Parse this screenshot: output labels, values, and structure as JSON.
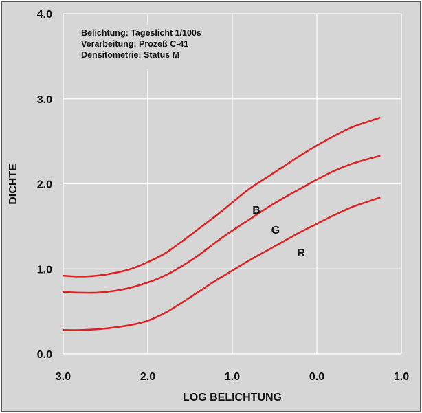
{
  "chart_data": {
    "type": "line",
    "xlabel": "LOG BELICHTUNG",
    "ylabel": "DICHTE",
    "xlim": [
      3.0,
      -1.0
    ],
    "ylim": [
      0.0,
      4.0
    ],
    "x_ticks": [
      "3.0",
      "2.0",
      "1.0",
      "0.0",
      "1.0"
    ],
    "y_ticks": [
      "4.0",
      "3.0",
      "2.0",
      "1.0",
      "0.0"
    ],
    "grid": true,
    "annotations": [
      "Belichtung: Tageslicht 1/100s",
      "Verarbeitung: Prozeß C-41",
      "Densitometrie: Status M"
    ],
    "series": [
      {
        "name": "B",
        "color": "#e02020",
        "x": [
          3.0,
          2.8,
          2.6,
          2.4,
          2.2,
          2.0,
          1.8,
          1.6,
          1.4,
          1.2,
          1.0,
          0.8,
          0.6,
          0.4,
          0.2,
          0.0,
          -0.2,
          -0.4,
          -0.6,
          -0.75
        ],
        "y": [
          0.92,
          0.91,
          0.92,
          0.95,
          1.0,
          1.08,
          1.18,
          1.32,
          1.47,
          1.62,
          1.78,
          1.94,
          2.07,
          2.2,
          2.33,
          2.45,
          2.56,
          2.66,
          2.73,
          2.78
        ]
      },
      {
        "name": "G",
        "color": "#e02020",
        "x": [
          3.0,
          2.8,
          2.6,
          2.4,
          2.2,
          2.0,
          1.8,
          1.6,
          1.4,
          1.2,
          1.0,
          0.8,
          0.6,
          0.4,
          0.2,
          0.0,
          -0.2,
          -0.4,
          -0.6,
          -0.75
        ],
        "y": [
          0.73,
          0.72,
          0.72,
          0.74,
          0.78,
          0.84,
          0.92,
          1.03,
          1.16,
          1.31,
          1.45,
          1.58,
          1.71,
          1.83,
          1.94,
          2.05,
          2.15,
          2.23,
          2.29,
          2.33
        ]
      },
      {
        "name": "R",
        "color": "#e02020",
        "x": [
          3.0,
          2.8,
          2.6,
          2.4,
          2.2,
          2.0,
          1.8,
          1.6,
          1.4,
          1.2,
          1.0,
          0.8,
          0.6,
          0.4,
          0.2,
          0.0,
          -0.2,
          -0.4,
          -0.6,
          -0.75
        ],
        "y": [
          0.28,
          0.28,
          0.29,
          0.31,
          0.34,
          0.39,
          0.48,
          0.6,
          0.73,
          0.86,
          0.98,
          1.1,
          1.21,
          1.32,
          1.43,
          1.53,
          1.63,
          1.72,
          1.79,
          1.84
        ]
      }
    ]
  }
}
